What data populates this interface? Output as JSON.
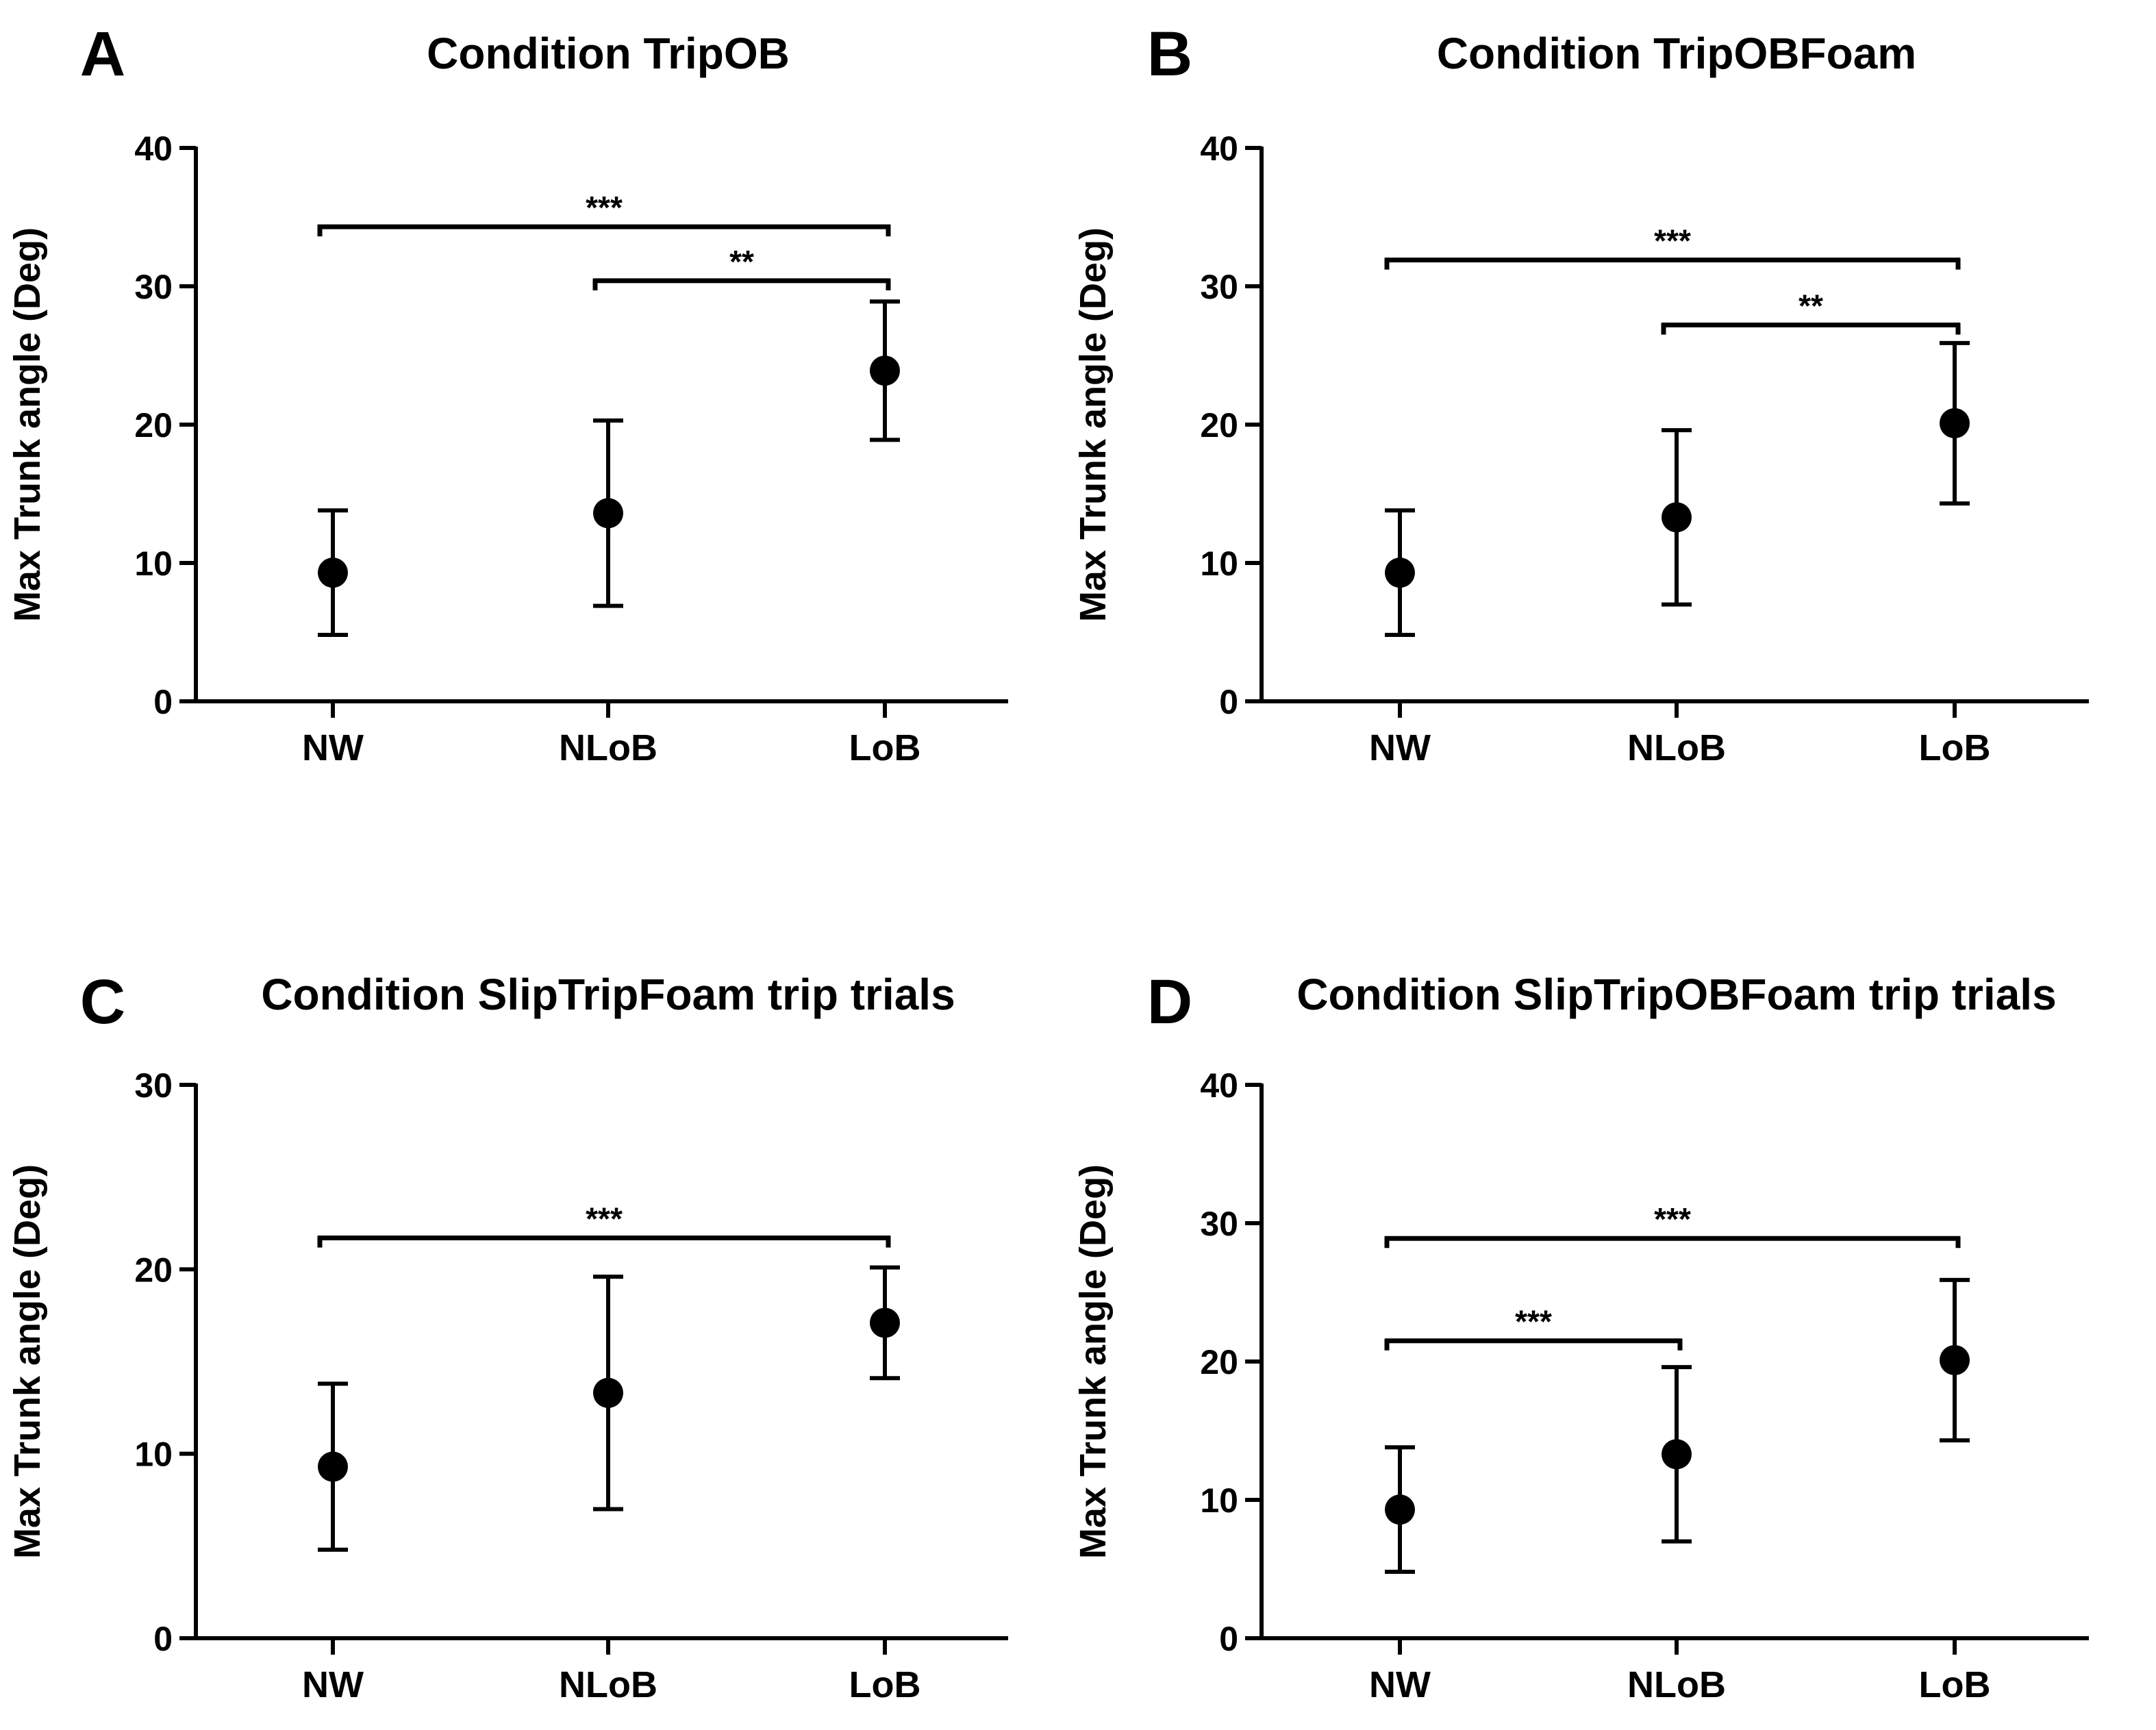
{
  "figure": {
    "description_colors": {
      "ink": "#000000",
      "background": "#ffffff"
    }
  },
  "chart_data": [
    {
      "panel": "A",
      "type": "scatter",
      "title": "Condition TripOB",
      "xlabel": "",
      "ylabel": "Max Trunk angle (Deg)",
      "categories": [
        "NW",
        "NLoB",
        "LoB"
      ],
      "ylim": [
        0,
        40
      ],
      "yticks": [
        0,
        10,
        20,
        30,
        40
      ],
      "series": [
        {
          "name": "mean",
          "values": [
            9.3,
            13.6,
            23.9
          ],
          "err_low": [
            4.8,
            6.9,
            18.9
          ],
          "err_high": [
            13.8,
            20.3,
            28.9
          ]
        }
      ],
      "significance": [
        {
          "from": 0,
          "to": 2,
          "y": 34.3,
          "label": "***"
        },
        {
          "from": 1,
          "to": 2,
          "y": 30.4,
          "label": "**"
        }
      ]
    },
    {
      "panel": "B",
      "type": "scatter",
      "title": "Condition TripOBFoam",
      "xlabel": "",
      "ylabel": "Max Trunk angle (Deg)",
      "categories": [
        "NW",
        "NLoB",
        "LoB"
      ],
      "ylim": [
        0,
        40
      ],
      "yticks": [
        0,
        10,
        20,
        30,
        40
      ],
      "series": [
        {
          "name": "mean",
          "values": [
            9.3,
            13.3,
            20.1
          ],
          "err_low": [
            4.8,
            7.0,
            14.3
          ],
          "err_high": [
            13.8,
            19.6,
            25.9
          ]
        }
      ],
      "significance": [
        {
          "from": 0,
          "to": 2,
          "y": 31.9,
          "label": "***"
        },
        {
          "from": 1,
          "to": 2,
          "y": 27.2,
          "label": "**"
        }
      ]
    },
    {
      "panel": "C",
      "type": "scatter",
      "title": "Condition  SlipTripFoam trip trials",
      "xlabel": "",
      "ylabel": "Max Trunk angle (Deg)",
      "categories": [
        "NW",
        "NLoB",
        "LoB"
      ],
      "ylim": [
        0,
        30
      ],
      "yticks": [
        0,
        10,
        20,
        30
      ],
      "series": [
        {
          "name": "mean",
          "values": [
            9.3,
            13.3,
            17.1
          ],
          "err_low": [
            4.8,
            7.0,
            14.1
          ],
          "err_high": [
            13.8,
            19.6,
            20.1
          ]
        }
      ],
      "significance": [
        {
          "from": 0,
          "to": 2,
          "y": 21.7,
          "label": "***"
        }
      ]
    },
    {
      "panel": "D",
      "type": "scatter",
      "title": "Condition SlipTripOBFoam trip  trials",
      "xlabel": "",
      "ylabel": "Max Trunk angle (Deg)",
      "categories": [
        "NW",
        "NLoB",
        "LoB"
      ],
      "ylim": [
        0,
        40
      ],
      "yticks": [
        0,
        10,
        20,
        30,
        40
      ],
      "series": [
        {
          "name": "mean",
          "values": [
            9.3,
            13.3,
            20.1
          ],
          "err_low": [
            4.8,
            7.0,
            14.3
          ],
          "err_high": [
            13.8,
            19.6,
            25.9
          ]
        }
      ],
      "significance": [
        {
          "from": 0,
          "to": 2,
          "y": 28.9,
          "label": "***"
        },
        {
          "from": 0,
          "to": 1,
          "y": 21.5,
          "label": "***"
        }
      ]
    }
  ]
}
